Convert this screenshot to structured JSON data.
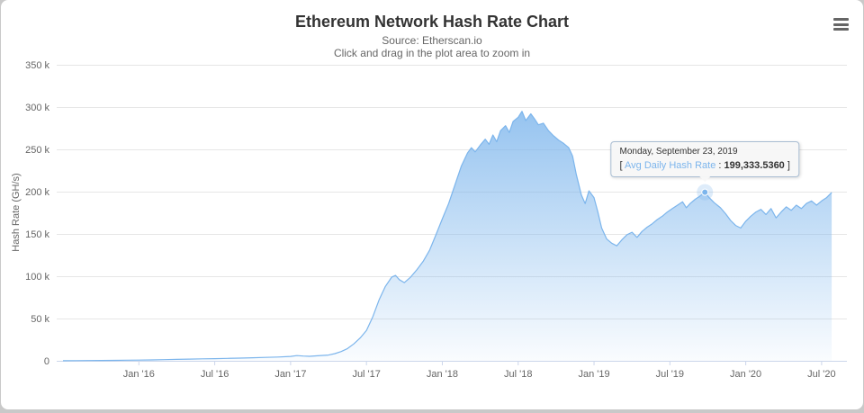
{
  "page": {
    "background": "#c9c9c9",
    "card_background": "#ffffff"
  },
  "chart_data": {
    "type": "area",
    "title": "Ethereum Network Hash Rate Chart",
    "subtitle1": "Source: Etherscan.io",
    "subtitle2": "Click and drag in the plot area to zoom in",
    "xlabel": "",
    "ylabel": "Hash Rate (GH/s)",
    "ylim": [
      0,
      350000
    ],
    "x_unit": "months_since_2015-01",
    "x_range": [
      5.5,
      68
    ],
    "grid": "horizontal",
    "legend": "hidden",
    "colors": {
      "line": "#7cb5ec",
      "area_top": "#7cb5ec",
      "grid": "#e6e6e6",
      "axis_line": "#ccd6eb",
      "title_text": "#333333",
      "tick_text": "#666666"
    },
    "yticks": [
      {
        "v": 0,
        "label": "0"
      },
      {
        "v": 50000,
        "label": "50 k"
      },
      {
        "v": 100000,
        "label": "100 k"
      },
      {
        "v": 150000,
        "label": "150 k"
      },
      {
        "v": 200000,
        "label": "200 k"
      },
      {
        "v": 250000,
        "label": "250 k"
      },
      {
        "v": 300000,
        "label": "300 k"
      },
      {
        "v": 350000,
        "label": "350 k"
      }
    ],
    "xticks": [
      {
        "t": 12,
        "label": "Jan '16"
      },
      {
        "t": 18,
        "label": "Jul '16"
      },
      {
        "t": 24,
        "label": "Jan '17"
      },
      {
        "t": 30,
        "label": "Jul '17"
      },
      {
        "t": 36,
        "label": "Jan '18"
      },
      {
        "t": 42,
        "label": "Jul '18"
      },
      {
        "t": 48,
        "label": "Jan '19"
      },
      {
        "t": 54,
        "label": "Jul '19"
      },
      {
        "t": 60,
        "label": "Jan '20"
      },
      {
        "t": 66,
        "label": "Jul '20"
      }
    ],
    "series": [
      {
        "name": "Avg Daily Hash Rate",
        "points": [
          [
            6,
            100
          ],
          [
            7,
            250
          ],
          [
            8,
            350
          ],
          [
            9,
            450
          ],
          [
            10,
            550
          ],
          [
            11,
            700
          ],
          [
            12,
            900
          ],
          [
            13,
            1100
          ],
          [
            14,
            1400
          ],
          [
            15,
            1700
          ],
          [
            16,
            2000
          ],
          [
            17,
            2300
          ],
          [
            18,
            2600
          ],
          [
            19,
            2900
          ],
          [
            20,
            3200
          ],
          [
            21,
            3600
          ],
          [
            22,
            4000
          ],
          [
            23,
            4500
          ],
          [
            24,
            5200
          ],
          [
            24.5,
            6200
          ],
          [
            25,
            5600
          ],
          [
            25.5,
            5300
          ],
          [
            26,
            5800
          ],
          [
            27,
            6800
          ],
          [
            27.5,
            8500
          ],
          [
            28,
            11000
          ],
          [
            28.5,
            14500
          ],
          [
            29,
            20000
          ],
          [
            29.5,
            27000
          ],
          [
            30,
            36000
          ],
          [
            30.5,
            52000
          ],
          [
            31,
            72000
          ],
          [
            31.5,
            88000
          ],
          [
            32,
            99000
          ],
          [
            32.3,
            101000
          ],
          [
            32.6,
            96000
          ],
          [
            33,
            92500
          ],
          [
            33.5,
            99000
          ],
          [
            34,
            108000
          ],
          [
            34.5,
            118000
          ],
          [
            35,
            131000
          ],
          [
            35.5,
            149000
          ],
          [
            36,
            168000
          ],
          [
            36.5,
            186000
          ],
          [
            37,
            208000
          ],
          [
            37.5,
            230000
          ],
          [
            38,
            246000
          ],
          [
            38.3,
            252000
          ],
          [
            38.6,
            247000
          ],
          [
            39,
            255000
          ],
          [
            39.4,
            262000
          ],
          [
            39.7,
            256000
          ],
          [
            40,
            267000
          ],
          [
            40.3,
            259000
          ],
          [
            40.6,
            272000
          ],
          [
            41,
            278000
          ],
          [
            41.3,
            270000
          ],
          [
            41.6,
            283000
          ],
          [
            42,
            288000
          ],
          [
            42.3,
            295000
          ],
          [
            42.6,
            284000
          ],
          [
            43,
            292000
          ],
          [
            43.3,
            286000
          ],
          [
            43.6,
            279000
          ],
          [
            44,
            281000
          ],
          [
            44.4,
            272000
          ],
          [
            44.8,
            266000
          ],
          [
            45.2,
            261000
          ],
          [
            45.6,
            257000
          ],
          [
            46,
            252000
          ],
          [
            46.3,
            242000
          ],
          [
            46.6,
            220000
          ],
          [
            47,
            196000
          ],
          [
            47.3,
            186000
          ],
          [
            47.6,
            201000
          ],
          [
            48,
            193000
          ],
          [
            48.3,
            176000
          ],
          [
            48.6,
            157000
          ],
          [
            49,
            144000
          ],
          [
            49.4,
            139000
          ],
          [
            49.8,
            136000
          ],
          [
            50.2,
            143000
          ],
          [
            50.6,
            149000
          ],
          [
            51,
            152000
          ],
          [
            51.4,
            146000
          ],
          [
            51.8,
            153000
          ],
          [
            52.2,
            158000
          ],
          [
            52.6,
            162000
          ],
          [
            53,
            167000
          ],
          [
            53.4,
            171000
          ],
          [
            53.8,
            176000
          ],
          [
            54.2,
            180000
          ],
          [
            54.6,
            184000
          ],
          [
            55,
            188000
          ],
          [
            55.3,
            181000
          ],
          [
            55.6,
            186000
          ],
          [
            56,
            191000
          ],
          [
            56.4,
            195000
          ],
          [
            56.77,
            199333.536
          ],
          [
            57.1,
            193000
          ],
          [
            57.5,
            187000
          ],
          [
            58,
            181000
          ],
          [
            58.4,
            174000
          ],
          [
            58.8,
            166000
          ],
          [
            59.2,
            160000
          ],
          [
            59.6,
            157000
          ],
          [
            60,
            165000
          ],
          [
            60.4,
            171000
          ],
          [
            60.8,
            176000
          ],
          [
            61.2,
            179000
          ],
          [
            61.6,
            173000
          ],
          [
            62,
            180000
          ],
          [
            62.4,
            169000
          ],
          [
            62.8,
            176000
          ],
          [
            63.2,
            182000
          ],
          [
            63.6,
            178000
          ],
          [
            64,
            184000
          ],
          [
            64.4,
            180000
          ],
          [
            64.8,
            186000
          ],
          [
            65.2,
            189000
          ],
          [
            65.6,
            184000
          ],
          [
            66,
            189000
          ],
          [
            66.4,
            193000
          ],
          [
            66.8,
            199000
          ]
        ]
      }
    ],
    "tooltip": {
      "date": "Monday, September 23, 2019",
      "open_bracket": "[ ",
      "series_label": "Avg Daily Hash Rate",
      "separator": " : ",
      "value_text": "199,333.5360",
      "close_bracket": " ]",
      "point": [
        56.77,
        199333.536
      ]
    }
  }
}
